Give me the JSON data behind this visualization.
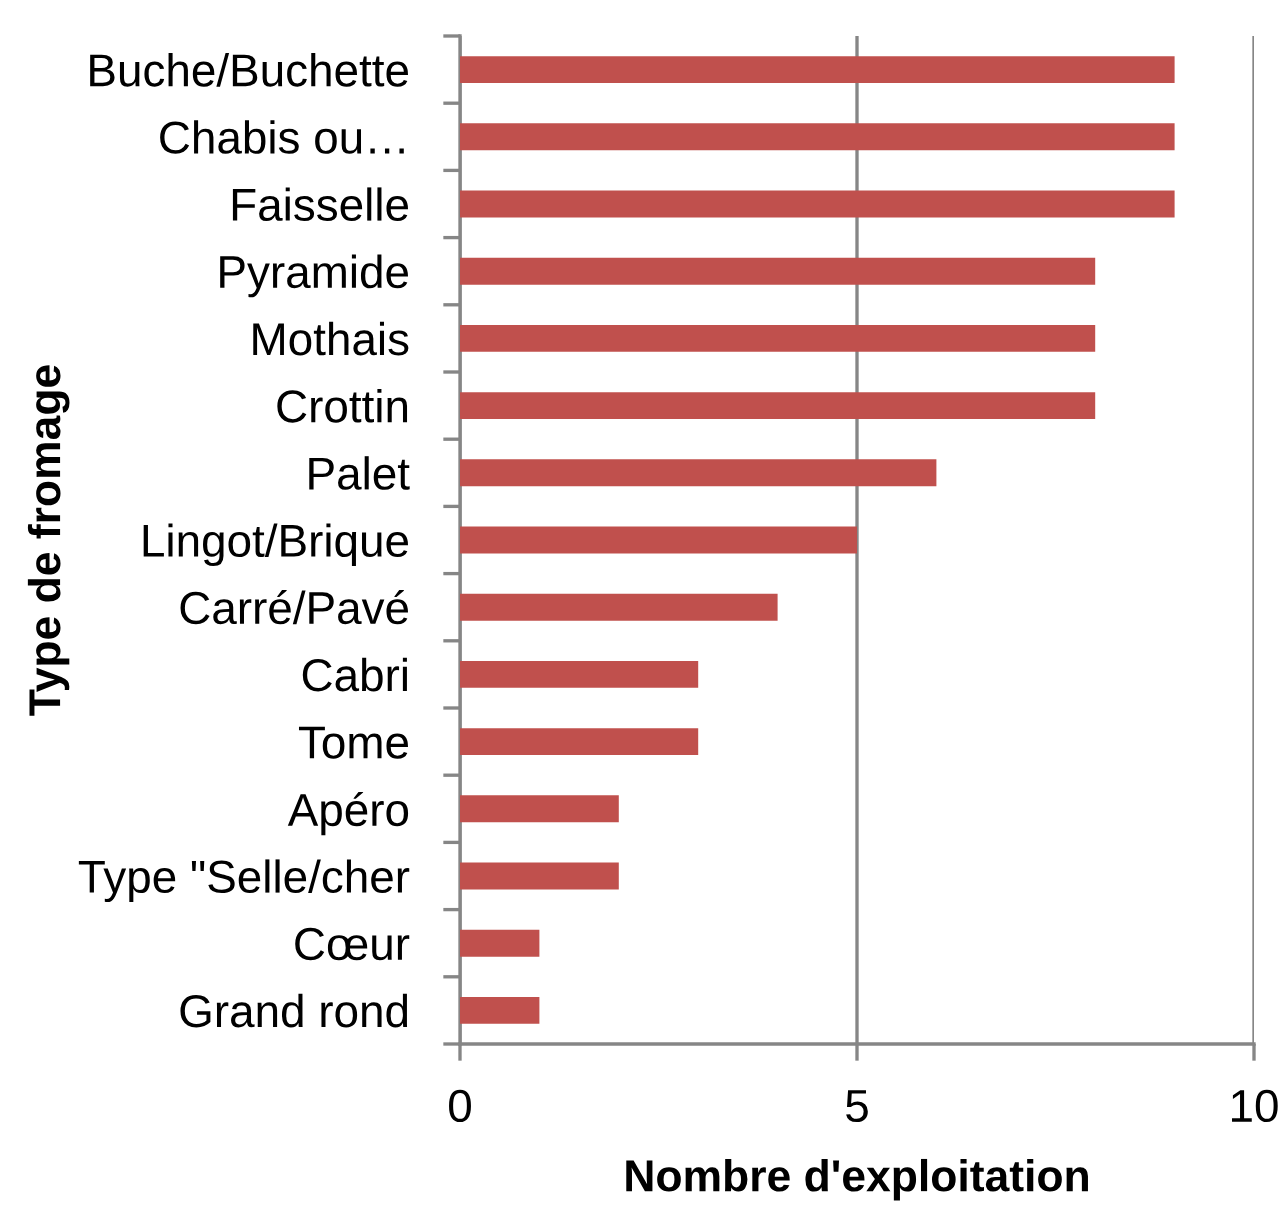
{
  "chart_data": {
    "type": "bar",
    "orientation": "horizontal",
    "xlabel": "Nombre d'exploitation",
    "ylabel": "Type de fromage",
    "categories": [
      "Buche/Buchette",
      "Chabis ou…",
      "Faisselle",
      "Pyramide",
      "Mothais",
      "Crottin",
      "Palet",
      "Lingot/Brique",
      "Carré/Pavé",
      "Cabri",
      "Tome",
      "Apéro",
      "Type \"Selle/cher",
      "Cœur",
      "Grand rond"
    ],
    "values": [
      9,
      9,
      9,
      8,
      8,
      8,
      6,
      5,
      4,
      3,
      3,
      2,
      2,
      1,
      1
    ],
    "color": "#c0504d",
    "xlim": [
      0,
      10
    ],
    "xticks": [
      0,
      5,
      10
    ],
    "grid": "x"
  }
}
